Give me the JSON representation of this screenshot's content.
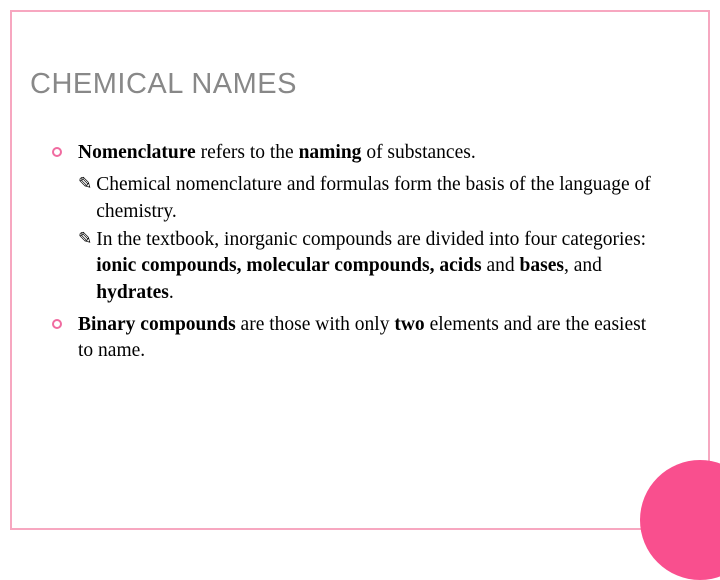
{
  "title": "CHEMICAL NAMES",
  "colors": {
    "border": "#f7a7c0",
    "bullet_ring": "#f06ba0",
    "circle": "#f94f8e",
    "title_color": "#888888",
    "text_color": "#000000",
    "background": "#ffffff"
  },
  "title_fontsize": 29,
  "body_fontsize": 19.5,
  "items": [
    {
      "html": "<b>Nomenclature</b> refers to the <b>naming</b> of substances.",
      "sub": [
        {
          "html": "Chemical nomenclature and formulas form the basis of the language of chemistry."
        },
        {
          "html": "In the textbook, inorganic compounds are divided into four categories: <b>ionic compounds, molecular compounds, acids</b> and <b>bases</b>, and <b>hydrates</b>."
        }
      ]
    },
    {
      "html": "<b>Binary compounds</b> are those with only <b>two</b> elements and are the easiest to name.",
      "sub": []
    }
  ]
}
